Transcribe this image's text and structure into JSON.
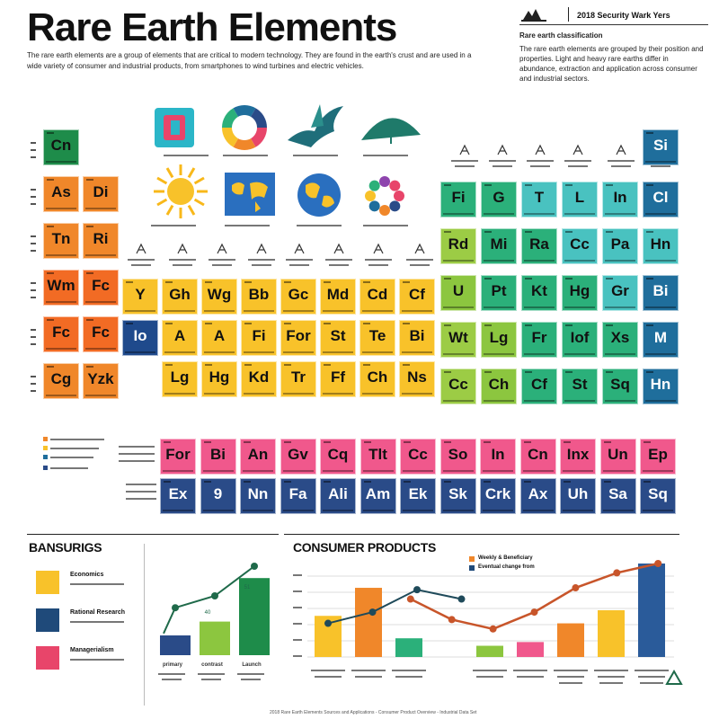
{
  "header": {
    "title": "Rare Earth Elements",
    "meta": "2018 Security Wark Yers",
    "intro": "The rare earth elements are a group of elements that are critical to modern technology. They are found in the earth's crust and are used in a wide variety of consumer and industrial products, from smartphones to wind turbines and electric vehicles.",
    "side_heading": "Rare earth classification",
    "side_text": "The rare earth elements are grouped by their position and properties. Light and heavy rare earths differ in abundance, extraction and application across consumer and industrial sectors."
  },
  "feature_icons": [
    "chip-icon",
    "ring-chart-icon",
    "bird-icon",
    "fan-icon",
    "sun-icon",
    "world-map-icon",
    "globe-icon",
    "ring-icon"
  ],
  "grid_left": [
    [
      {
        "s": "Cn",
        "c": "#1e8c4a"
      },
      null
    ],
    [
      {
        "s": "As",
        "c": "#f0872a"
      },
      {
        "s": "Di",
        "c": "#f0872a"
      }
    ],
    [
      {
        "s": "Tn",
        "c": "#f0872a"
      },
      {
        "s": "Ri",
        "c": "#f0872a"
      }
    ],
    [
      {
        "s": "Wm",
        "c": "#f26b24"
      },
      {
        "s": "Fc",
        "c": "#f26b24"
      }
    ],
    [
      {
        "s": "Fc",
        "c": "#f26b24"
      },
      {
        "s": "Fc",
        "c": "#f26b24"
      }
    ],
    [
      {
        "s": "Cg",
        "c": "#f0872a"
      },
      {
        "s": "Yzk",
        "c": "#f0872a"
      }
    ]
  ],
  "grid_mid": [
    [
      {
        "s": "Y",
        "c": "#f8c22a"
      },
      {
        "s": "Gh",
        "c": "#f8c22a"
      },
      {
        "s": "Wg",
        "c": "#f8c22a"
      },
      {
        "s": "Bb",
        "c": "#f8c22a"
      },
      {
        "s": "Gc",
        "c": "#f8c22a"
      },
      {
        "s": "Md",
        "c": "#f8c22a"
      },
      {
        "s": "Cd",
        "c": "#f8c22a"
      },
      {
        "s": "Cf",
        "c": "#f8c22a"
      }
    ],
    [
      {
        "s": "Io",
        "c": "#1f4a8c"
      },
      {
        "s": "A",
        "c": "#f8c22a"
      },
      {
        "s": "A",
        "c": "#f8c22a"
      },
      {
        "s": "Fi",
        "c": "#f8c22a"
      },
      {
        "s": "For",
        "c": "#f8c22a"
      },
      {
        "s": "St",
        "c": "#f8c22a"
      },
      {
        "s": "Te",
        "c": "#f8c22a"
      },
      {
        "s": "Bi",
        "c": "#f8c22a"
      }
    ],
    [
      null,
      {
        "s": "Lg",
        "c": "#f8c22a"
      },
      {
        "s": "Hg",
        "c": "#f8c22a"
      },
      {
        "s": "Kd",
        "c": "#f8c22a"
      },
      {
        "s": "Tr",
        "c": "#f8c22a"
      },
      {
        "s": "Ff",
        "c": "#f8c22a"
      },
      {
        "s": "Ch",
        "c": "#f8c22a"
      },
      {
        "s": "Ns",
        "c": "#f8c22a"
      }
    ]
  ],
  "grid_right": [
    [
      null,
      null,
      null,
      null,
      null,
      {
        "s": "Si",
        "c": "#1f6e9c"
      }
    ],
    [
      {
        "s": "Fi",
        "c": "#2bb07a"
      },
      {
        "s": "G",
        "c": "#2bb07a"
      },
      {
        "s": "T",
        "c": "#49c2c0"
      },
      {
        "s": "L",
        "c": "#49c2c0"
      },
      {
        "s": "In",
        "c": "#49c2c0"
      },
      {
        "s": "Cl",
        "c": "#1f6e9c"
      }
    ],
    [
      {
        "s": "Rd",
        "c": "#9ccc45"
      },
      {
        "s": "Mi",
        "c": "#2bb07a"
      },
      {
        "s": "Ra",
        "c": "#2bb07a"
      },
      {
        "s": "Cc",
        "c": "#49c2c0"
      },
      {
        "s": "Pa",
        "c": "#49c2c0"
      },
      {
        "s": "Hn",
        "c": "#49c2c0"
      }
    ],
    [
      {
        "s": "U",
        "c": "#8cc63f"
      },
      {
        "s": "Pt",
        "c": "#2bb07a"
      },
      {
        "s": "Kt",
        "c": "#2bb07a"
      },
      {
        "s": "Hg",
        "c": "#2bb07a"
      },
      {
        "s": "Gr",
        "c": "#49c2c0"
      },
      {
        "s": "Bi",
        "c": "#1f6e9c"
      }
    ],
    [
      {
        "s": "Wt",
        "c": "#9ccc45"
      },
      {
        "s": "Lg",
        "c": "#8cc63f"
      },
      {
        "s": "Fr",
        "c": "#2bb07a"
      },
      {
        "s": "Iof",
        "c": "#2bb07a"
      },
      {
        "s": "Xs",
        "c": "#2bb07a"
      },
      {
        "s": "M",
        "c": "#1f6e9c"
      }
    ],
    [
      {
        "s": "Cc",
        "c": "#9ccc45"
      },
      {
        "s": "Ch",
        "c": "#8cc63f"
      },
      {
        "s": "Cf",
        "c": "#2bb07a"
      },
      {
        "s": "St",
        "c": "#2bb07a"
      },
      {
        "s": "Sq",
        "c": "#2bb07a"
      },
      {
        "s": "Hn",
        "c": "#1f6e9c"
      }
    ]
  ],
  "grid_bottom": [
    [
      {
        "s": "For",
        "c": "#f0588c"
      },
      {
        "s": "Bi",
        "c": "#f0588c"
      },
      {
        "s": "An",
        "c": "#f0588c"
      },
      {
        "s": "Gv",
        "c": "#f0588c"
      },
      {
        "s": "Cq",
        "c": "#f0588c"
      },
      {
        "s": "Tlt",
        "c": "#f0588c"
      },
      {
        "s": "Cc",
        "c": "#f0588c"
      },
      {
        "s": "So",
        "c": "#f0588c"
      },
      {
        "s": "In",
        "c": "#f0588c"
      },
      {
        "s": "Cn",
        "c": "#f0588c"
      },
      {
        "s": "Inx",
        "c": "#f0588c"
      },
      {
        "s": "Un",
        "c": "#f0588c"
      },
      {
        "s": "Ep",
        "c": "#f0588c"
      }
    ],
    [
      {
        "s": "Ex",
        "c": "#2a4b88"
      },
      {
        "s": "9",
        "c": "#2a4b88"
      },
      {
        "s": "Nn",
        "c": "#2a4b88"
      },
      {
        "s": "Fa",
        "c": "#2a4b88"
      },
      {
        "s": "Ali",
        "c": "#2a4b88"
      },
      {
        "s": "Am",
        "c": "#2a4b88"
      },
      {
        "s": "Ek",
        "c": "#2a4b88"
      },
      {
        "s": "Sk",
        "c": "#2a4b88"
      },
      {
        "s": "Crk",
        "c": "#2a4b88"
      },
      {
        "s": "Ax",
        "c": "#2a4b88"
      },
      {
        "s": "Uh",
        "c": "#2a4b88"
      },
      {
        "s": "Sa",
        "c": "#2a4b88"
      },
      {
        "s": "Sq",
        "c": "#2a4b88"
      }
    ]
  ],
  "left_chart": {
    "title": "BANSURIGS",
    "legend": [
      {
        "label": "Economics",
        "color": "#f8c22a"
      },
      {
        "label": "Rational Research",
        "color": "#1f4a7a"
      },
      {
        "label": "Managerialism",
        "color": "#e8456a"
      }
    ],
    "bars": [
      {
        "color": "#2a4b88",
        "value": 20,
        "label": "primary"
      },
      {
        "color": "#8cc63f",
        "value": 34,
        "label": "contrast"
      },
      {
        "color": "#1e8c4a",
        "value": 78,
        "label": "Launch"
      }
    ],
    "line": [
      22,
      48,
      60,
      90
    ],
    "marks": [
      "40",
      "51"
    ]
  },
  "right_chart": {
    "title": "CONSUMER PRODUCTS",
    "legend": [
      {
        "label": "Weekly & Beneficiary",
        "color": "#f0872a"
      },
      {
        "label": "Eventual change from",
        "color": "#1f4a7a"
      }
    ],
    "y_ticks": [
      "",
      "",
      "",
      "",
      "",
      "",
      ""
    ],
    "bars": [
      {
        "color": "#f8c22a",
        "value": 44
      },
      {
        "color": "#f0872a",
        "value": 74
      },
      {
        "color": "#2bb07a",
        "value": 20
      },
      {
        "color": "#ffffff",
        "value": 0
      },
      {
        "color": "#8cc63f",
        "value": 12
      },
      {
        "color": "#f0588c",
        "value": 16
      },
      {
        "color": "#f0872a",
        "value": 36
      },
      {
        "color": "#f8c22a",
        "value": 50
      },
      {
        "color": "#2a5b9a",
        "value": 100
      }
    ],
    "line_dark": [
      36,
      48,
      72,
      62
    ],
    "line_orange": [
      62,
      40,
      30,
      48,
      74,
      90,
      100
    ]
  },
  "footer": "2018 Rare Earth Elements Sources and Applications - Consumer Product Overview - Industrial Data Set"
}
